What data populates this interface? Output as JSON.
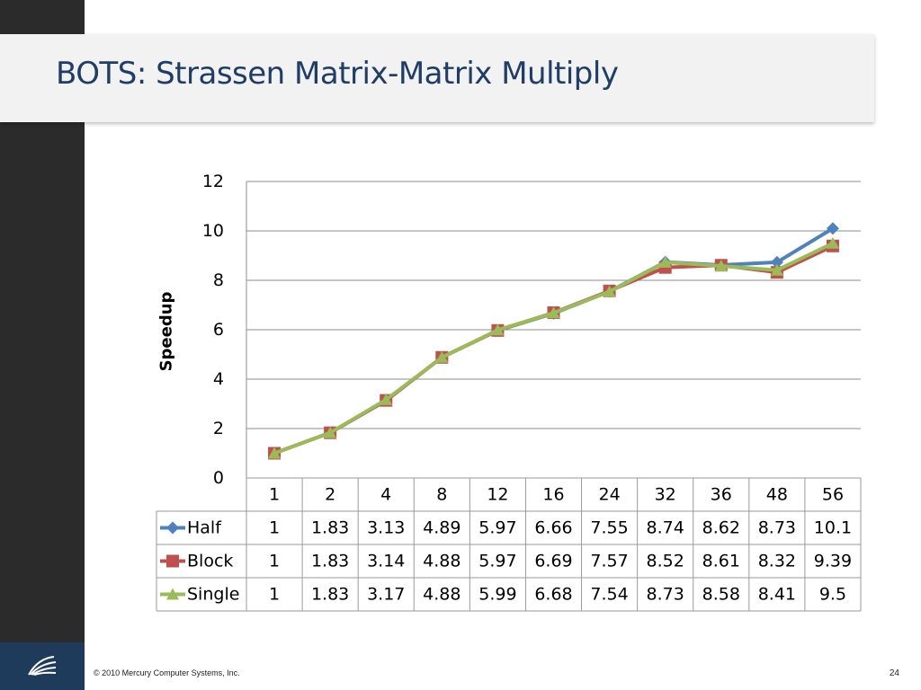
{
  "slide": {
    "title": "BOTS: Strassen Matrix-Matrix Multiply",
    "footer": "© 2010 Mercury Computer Systems, Inc.",
    "page_number": "24"
  },
  "chart_data": {
    "type": "line",
    "title": "",
    "xlabel": "",
    "ylabel": "Speedup",
    "ylim": [
      0,
      12
    ],
    "yticks": [
      0,
      2,
      4,
      6,
      8,
      10,
      12
    ],
    "grid": true,
    "legend": "data-table",
    "categories": [
      "1",
      "2",
      "4",
      "8",
      "12",
      "16",
      "24",
      "32",
      "36",
      "48",
      "56"
    ],
    "series": [
      {
        "name": "Half",
        "color": "#4f81bd",
        "marker": "diamond",
        "values": [
          1,
          1.83,
          3.13,
          4.89,
          5.97,
          6.66,
          7.55,
          8.74,
          8.62,
          8.73,
          10.1
        ]
      },
      {
        "name": "Block",
        "color": "#c0504d",
        "marker": "square",
        "values": [
          1,
          1.83,
          3.14,
          4.88,
          5.97,
          6.69,
          7.57,
          8.52,
          8.61,
          8.32,
          9.39
        ]
      },
      {
        "name": "Single",
        "color": "#9bbb59",
        "marker": "triangle",
        "values": [
          1,
          1.83,
          3.17,
          4.88,
          5.99,
          6.68,
          7.54,
          8.73,
          8.58,
          8.41,
          9.5
        ]
      }
    ]
  }
}
